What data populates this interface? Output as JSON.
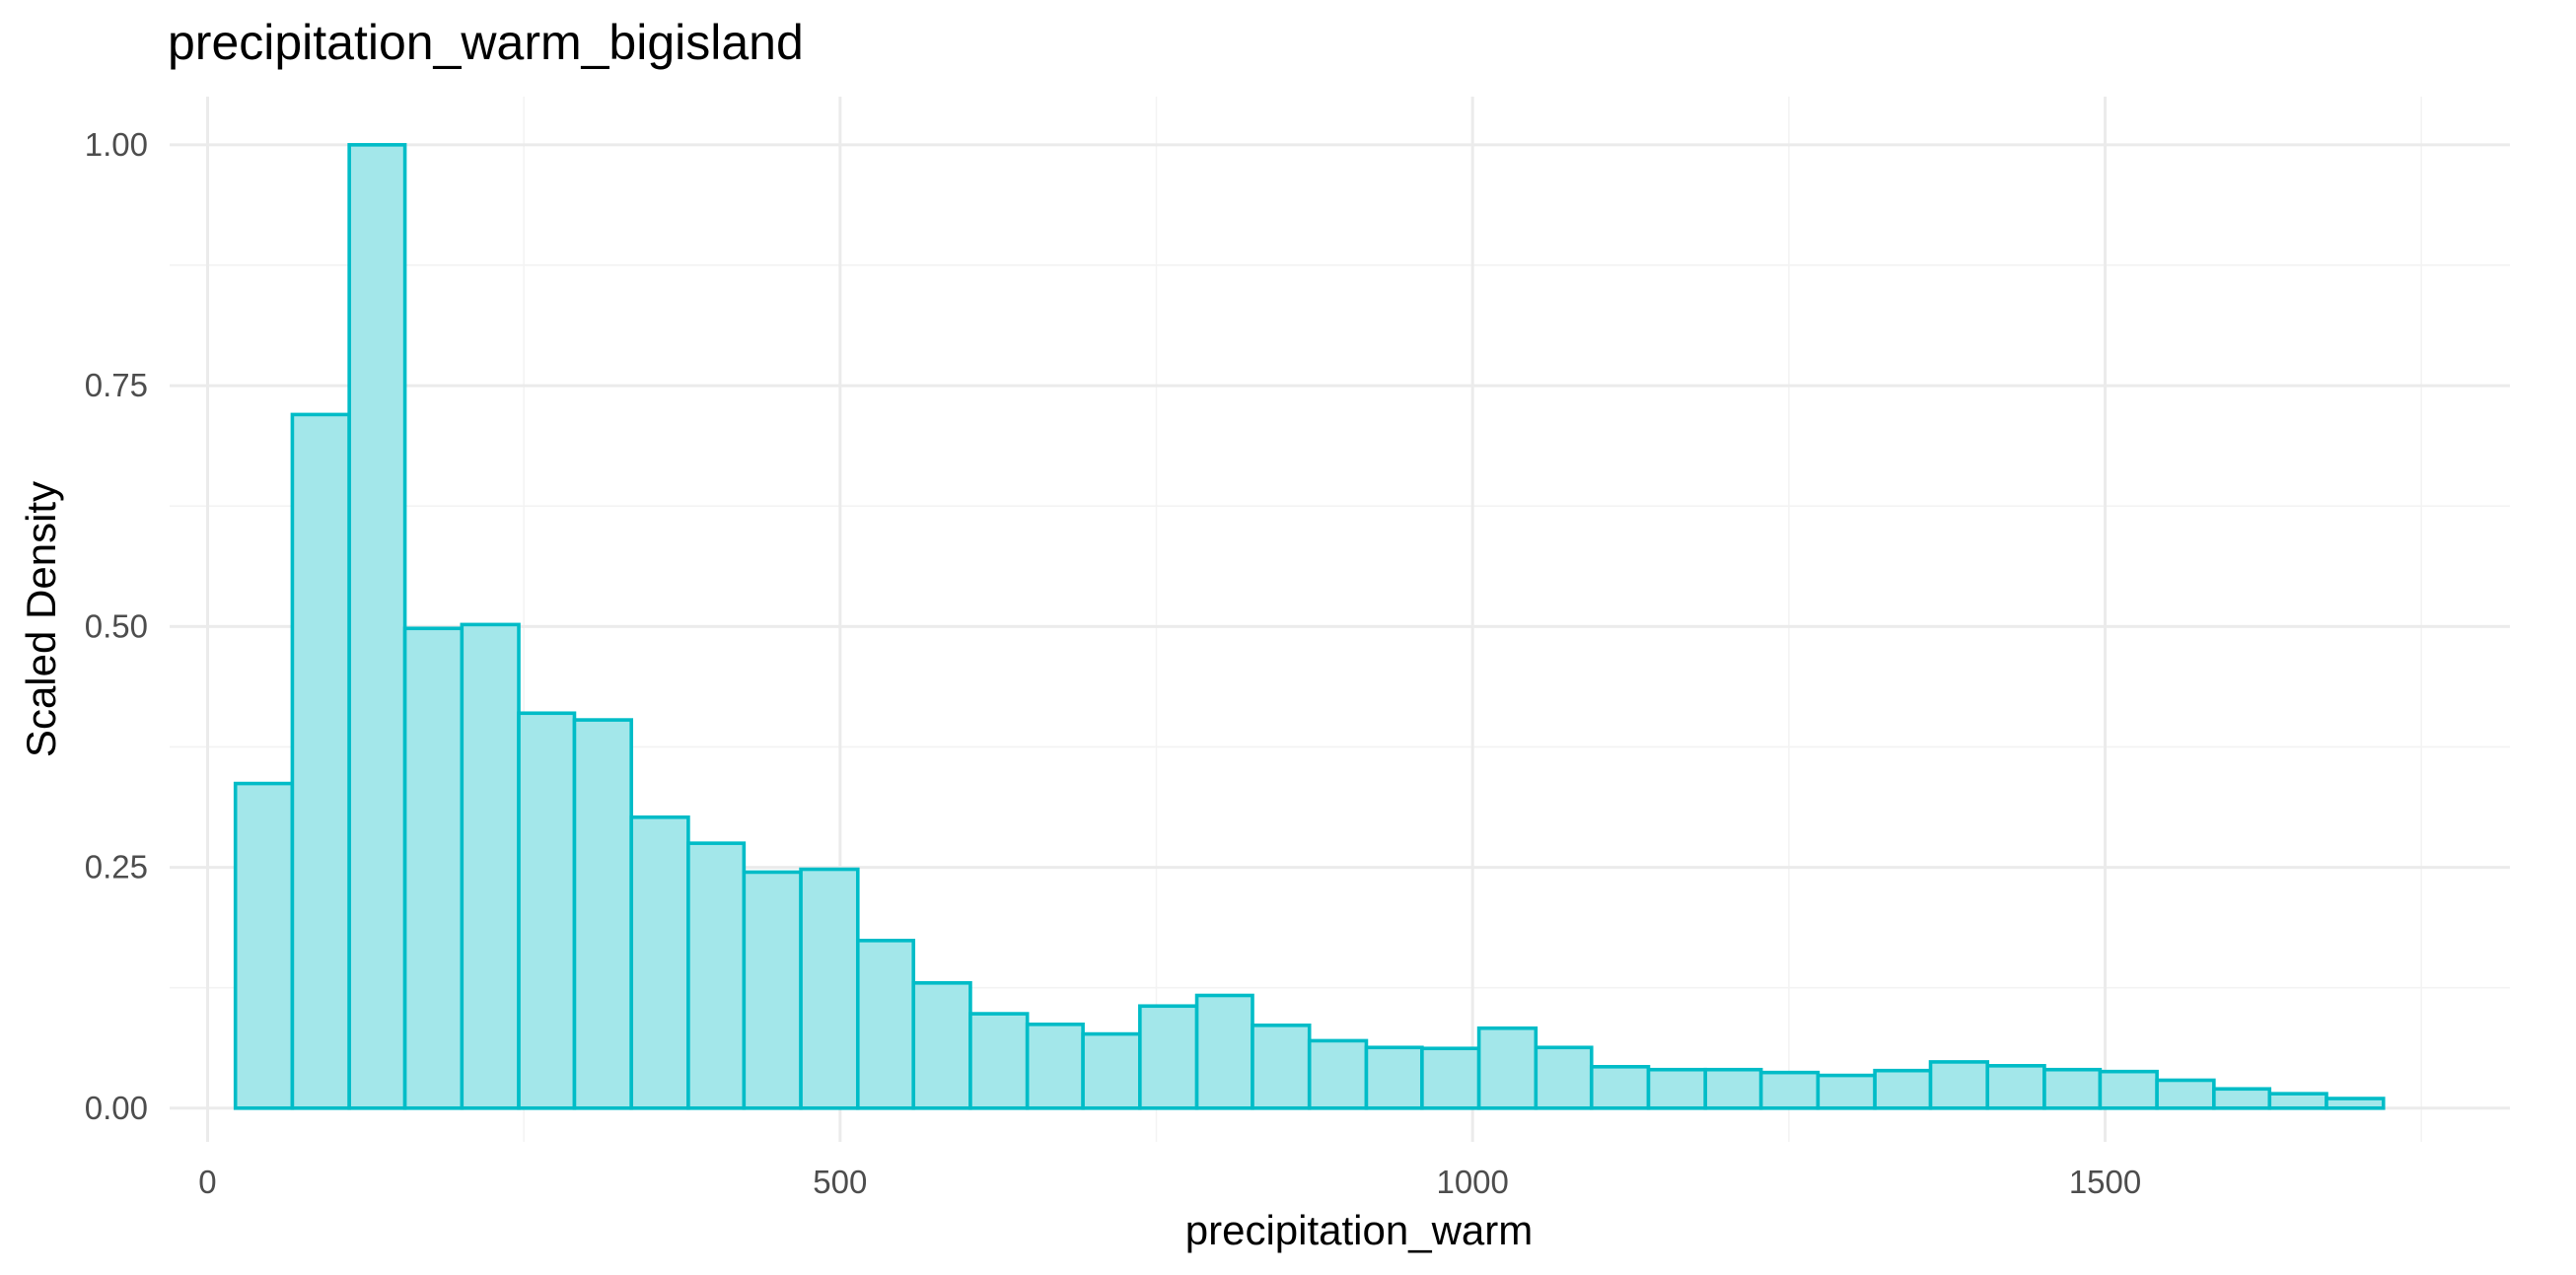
{
  "chart_data": {
    "type": "bar",
    "title": "precipitation_warm_bigisland",
    "xlabel": "precipitation_warm",
    "ylabel": "Scaled Density",
    "xlim": [
      -30,
      1820
    ],
    "ylim": [
      -0.035,
      1.05
    ],
    "x_ticks": [
      0,
      500,
      1000,
      1500
    ],
    "x_tick_labels": [
      "0",
      "500",
      "1000",
      "1500"
    ],
    "y_ticks": [
      0,
      0.25,
      0.5,
      0.75,
      1.0
    ],
    "y_tick_labels": [
      "0.00",
      "0.25",
      "0.50",
      "0.75",
      "1.00"
    ],
    "grid": true,
    "fill_color": "#a3e7ea",
    "outline_color": "#00bcc7",
    "bins": [
      {
        "x0": 22,
        "x1": 67,
        "value": 0.337
      },
      {
        "x0": 67,
        "x1": 112,
        "value": 0.72
      },
      {
        "x0": 112,
        "x1": 156,
        "value": 1.0
      },
      {
        "x0": 156,
        "x1": 201,
        "value": 0.498
      },
      {
        "x0": 201,
        "x1": 246,
        "value": 0.502
      },
      {
        "x0": 246,
        "x1": 290,
        "value": 0.41
      },
      {
        "x0": 290,
        "x1": 335,
        "value": 0.403
      },
      {
        "x0": 335,
        "x1": 380,
        "value": 0.302
      },
      {
        "x0": 380,
        "x1": 424,
        "value": 0.275
      },
      {
        "x0": 424,
        "x1": 469,
        "value": 0.245
      },
      {
        "x0": 469,
        "x1": 514,
        "value": 0.248
      },
      {
        "x0": 514,
        "x1": 558,
        "value": 0.174
      },
      {
        "x0": 558,
        "x1": 603,
        "value": 0.13
      },
      {
        "x0": 603,
        "x1": 648,
        "value": 0.098
      },
      {
        "x0": 648,
        "x1": 692,
        "value": 0.087
      },
      {
        "x0": 692,
        "x1": 737,
        "value": 0.077
      },
      {
        "x0": 737,
        "x1": 782,
        "value": 0.106
      },
      {
        "x0": 782,
        "x1": 826,
        "value": 0.117
      },
      {
        "x0": 826,
        "x1": 871,
        "value": 0.086
      },
      {
        "x0": 871,
        "x1": 916,
        "value": 0.07
      },
      {
        "x0": 916,
        "x1": 960,
        "value": 0.063
      },
      {
        "x0": 960,
        "x1": 1005,
        "value": 0.062
      },
      {
        "x0": 1005,
        "x1": 1050,
        "value": 0.083
      },
      {
        "x0": 1050,
        "x1": 1094,
        "value": 0.063
      },
      {
        "x0": 1094,
        "x1": 1139,
        "value": 0.043
      },
      {
        "x0": 1139,
        "x1": 1184,
        "value": 0.04
      },
      {
        "x0": 1184,
        "x1": 1228,
        "value": 0.04
      },
      {
        "x0": 1228,
        "x1": 1273,
        "value": 0.037
      },
      {
        "x0": 1273,
        "x1": 1318,
        "value": 0.034
      },
      {
        "x0": 1318,
        "x1": 1362,
        "value": 0.039
      },
      {
        "x0": 1362,
        "x1": 1407,
        "value": 0.048
      },
      {
        "x0": 1407,
        "x1": 1452,
        "value": 0.044
      },
      {
        "x0": 1452,
        "x1": 1496,
        "value": 0.04
      },
      {
        "x0": 1496,
        "x1": 1541,
        "value": 0.038
      },
      {
        "x0": 1541,
        "x1": 1586,
        "value": 0.029
      },
      {
        "x0": 1586,
        "x1": 1630,
        "value": 0.02
      },
      {
        "x0": 1630,
        "x1": 1675,
        "value": 0.015
      },
      {
        "x0": 1675,
        "x1": 1720,
        "value": 0.01
      }
    ]
  }
}
